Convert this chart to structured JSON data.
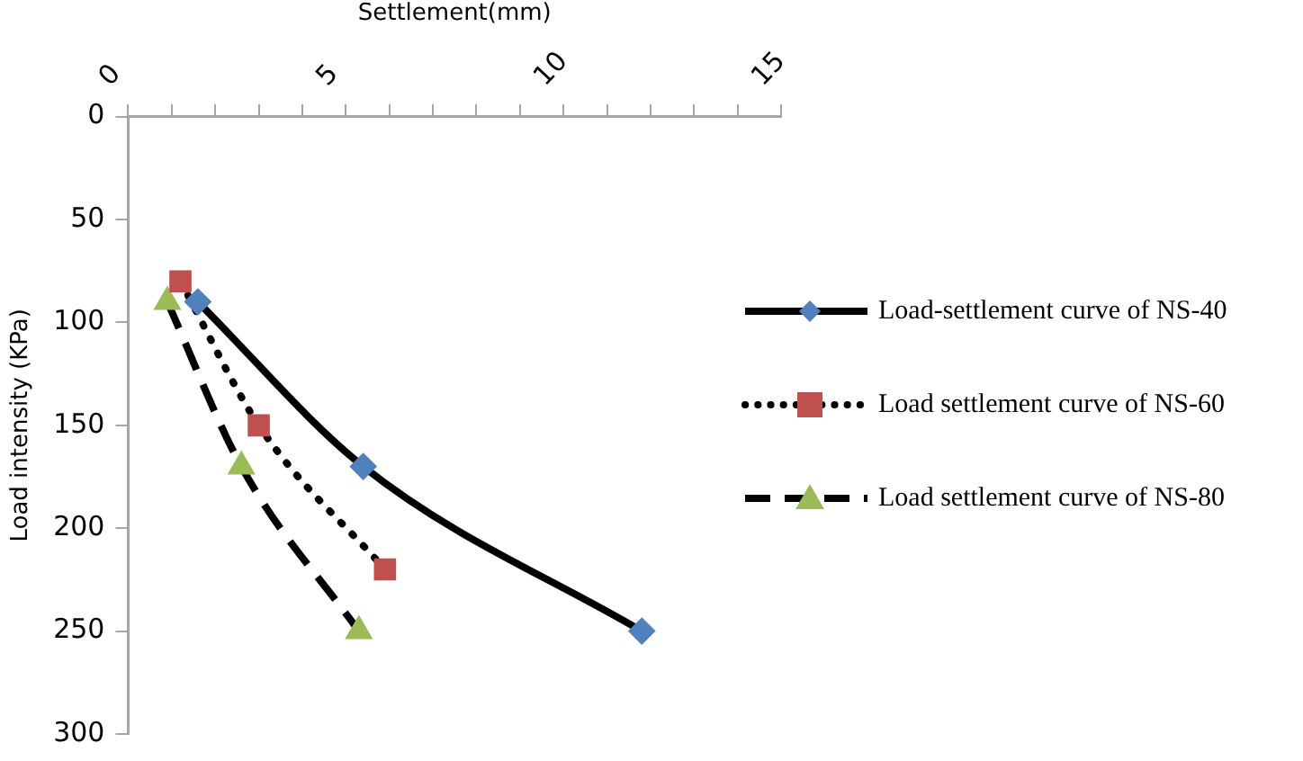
{
  "chart_data": {
    "type": "line",
    "xlabel": "Settlement(mm)",
    "ylabel": "Load intensity (KPa)",
    "xlim": [
      0,
      15
    ],
    "xticks": [
      0,
      {
        "value": 1,
        "label": null
      },
      {
        "value": 2,
        "label": null
      },
      {
        "value": 3,
        "label": null
      },
      {
        "value": 4,
        "label": null
      },
      5,
      {
        "value": 6,
        "label": null
      },
      {
        "value": 7,
        "label": null
      },
      {
        "value": 8,
        "label": null
      },
      {
        "value": 9,
        "label": null
      },
      10,
      {
        "value": 11,
        "label": null
      },
      {
        "value": 12,
        "label": null
      },
      {
        "value": 13,
        "label": null
      },
      {
        "value": 14,
        "label": null
      },
      15
    ],
    "ylim": [
      300,
      0
    ],
    "yticks": [
      0,
      50,
      100,
      150,
      200,
      250,
      300
    ],
    "grid": false,
    "legend": "right",
    "series": [
      {
        "name": "Load-settlement curve of NS-40",
        "color": "#4f81bd",
        "x": [
          1.6,
          5.4,
          11.8
        ],
        "values": [
          90,
          170,
          250
        ],
        "marker": "diamond",
        "line_style": "solid"
      },
      {
        "name": "Load settlement curve of NS-60",
        "color": "#c0504d",
        "x": [
          1.2,
          3.0,
          5.9
        ],
        "values": [
          80,
          150,
          220
        ],
        "marker": "square",
        "line_style": "dotted"
      },
      {
        "name": "Load settlement curve of NS-80",
        "color": "#9bbb59",
        "x": [
          0.9,
          2.6,
          5.3
        ],
        "values": [
          90,
          170,
          250
        ],
        "marker": "triangle",
        "line_style": "dashed"
      }
    ]
  }
}
